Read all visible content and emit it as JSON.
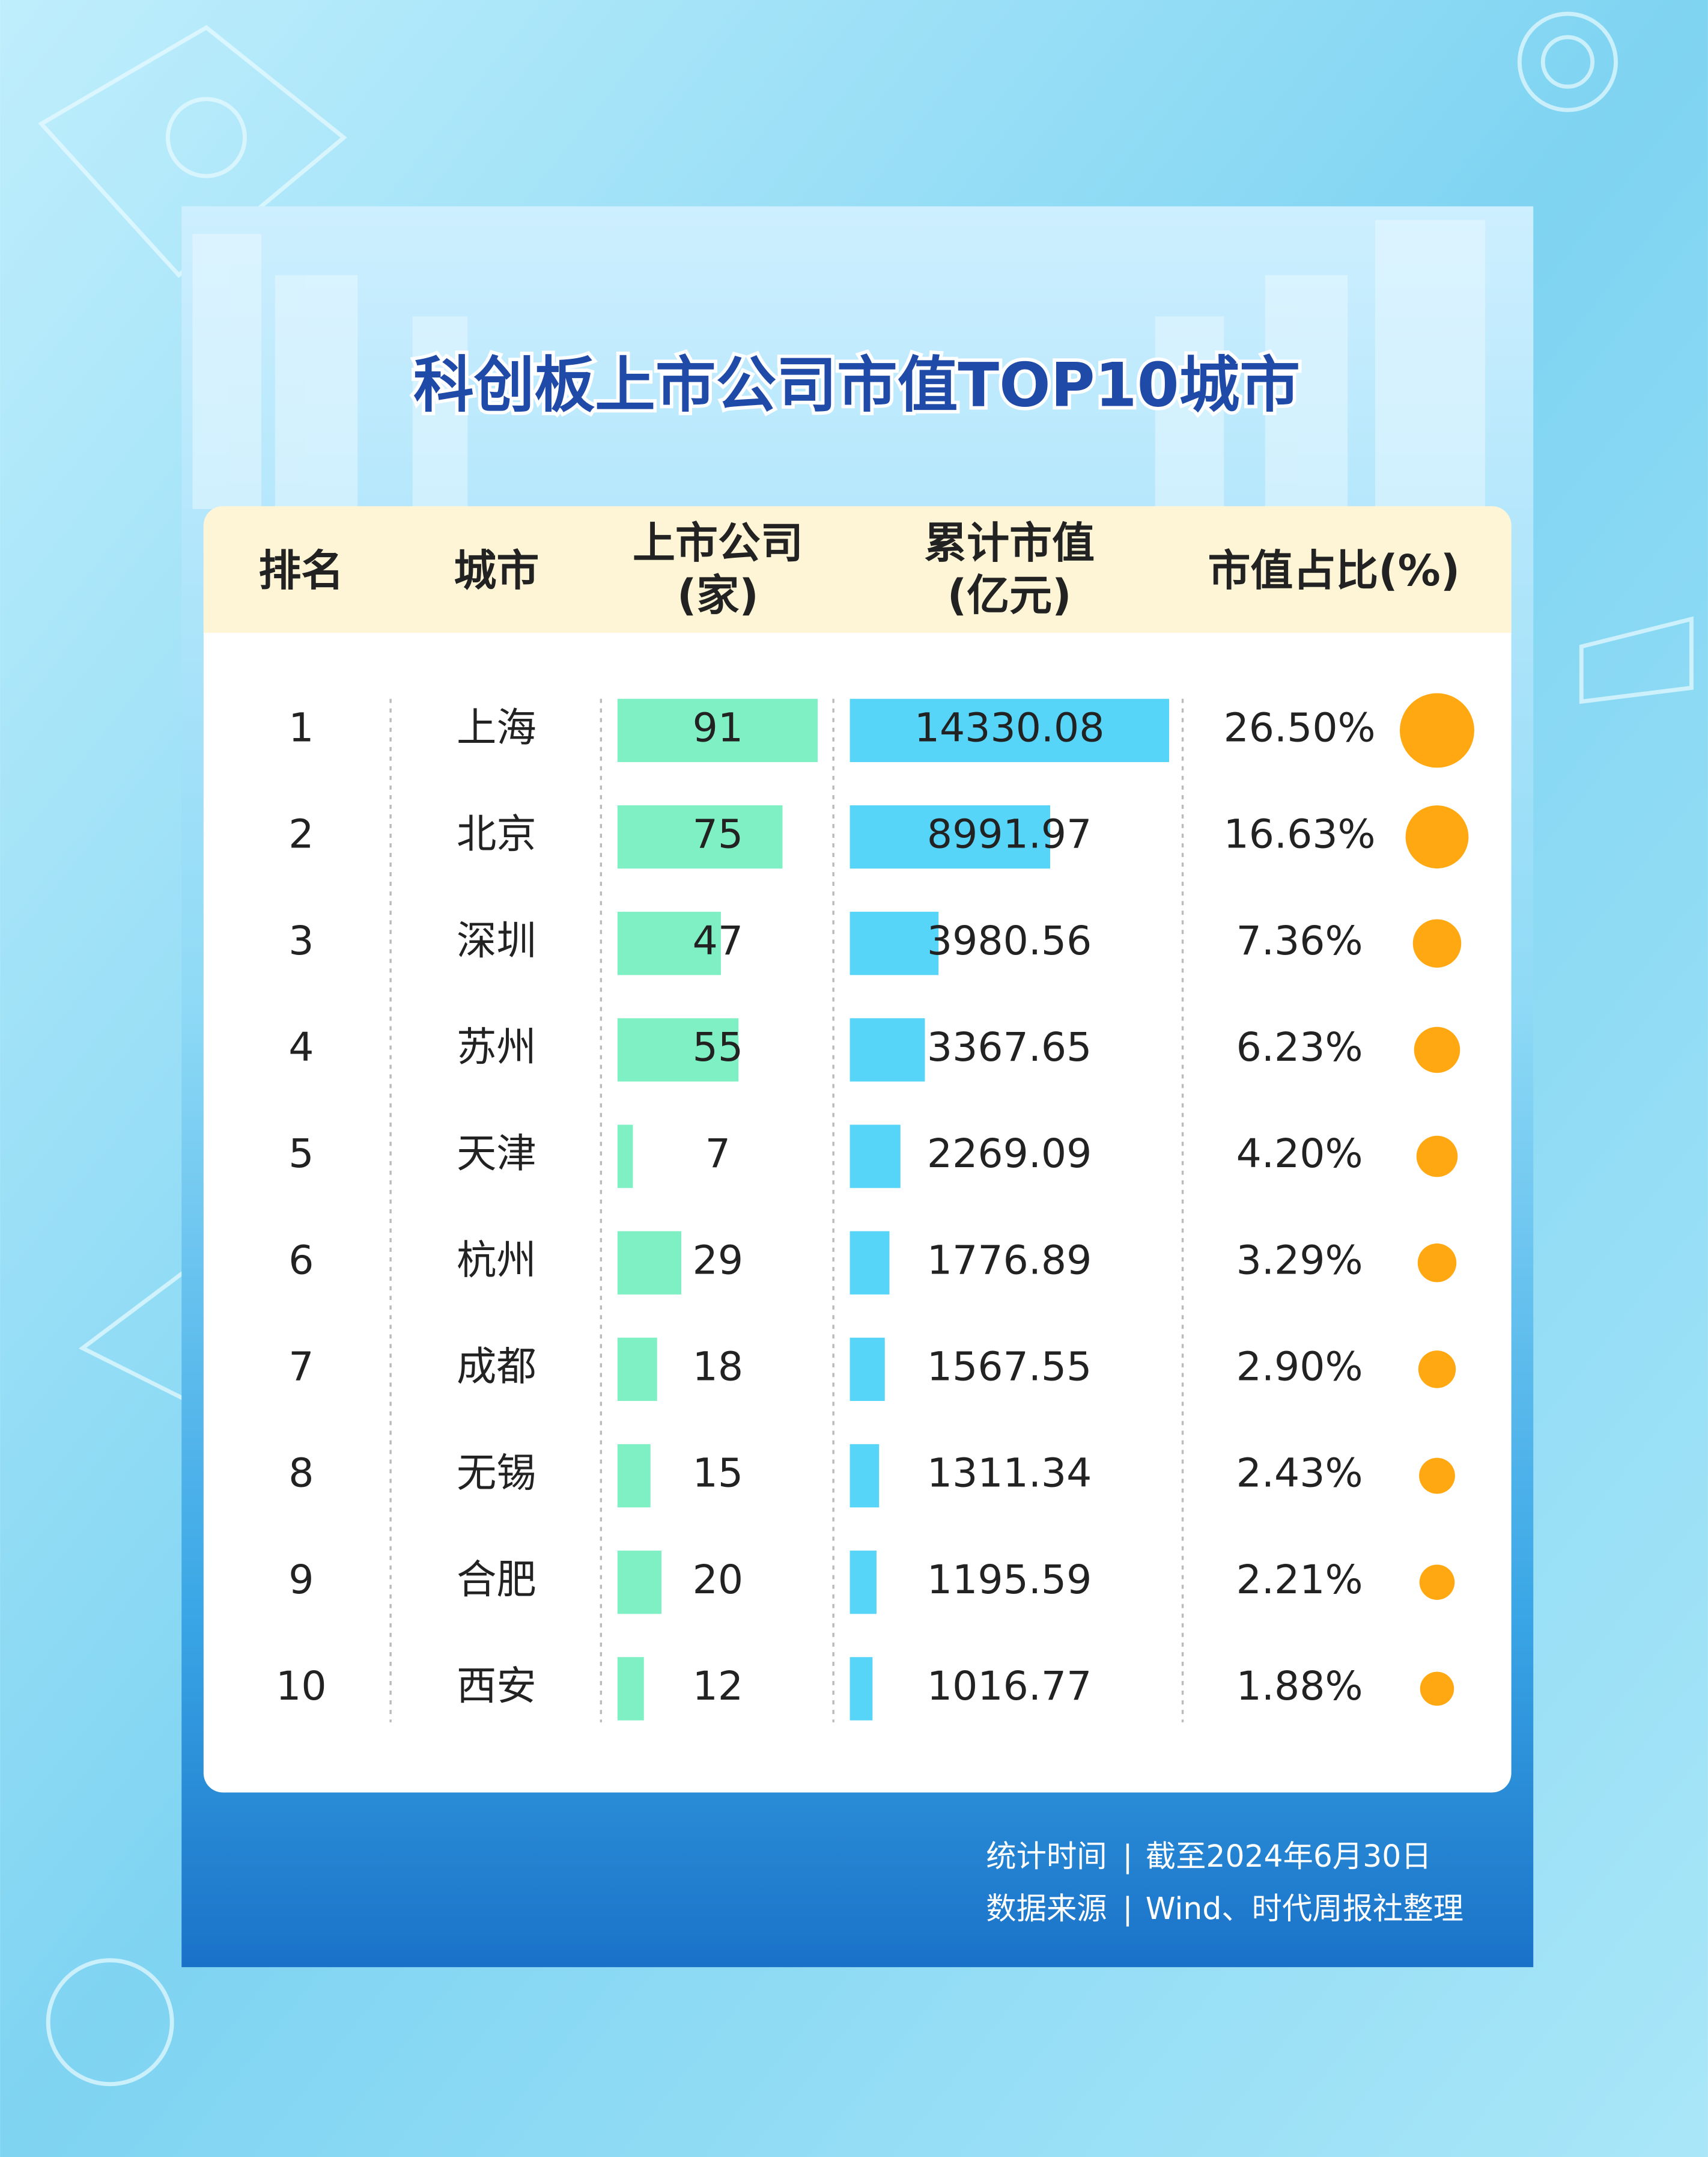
{
  "title": "科创板上市公司市值TOP10城市",
  "table": {
    "headers": [
      [
        "排名"
      ],
      [
        "城市"
      ],
      [
        "上市公司",
        "(家)"
      ],
      [
        "累计市值",
        "(亿元)"
      ],
      [
        "市值占比(%)"
      ]
    ],
    "rows": [
      {
        "rank": 1,
        "city": "上海",
        "companies": 91,
        "market_cap": 14330.08,
        "share": {
          "value": 26.5,
          "label": "26.50%"
        }
      },
      {
        "rank": 2,
        "city": "北京",
        "companies": 75,
        "market_cap": 8991.97,
        "share": {
          "value": 16.63,
          "label": "16.63%"
        }
      },
      {
        "rank": 3,
        "city": "深圳",
        "companies": 47,
        "market_cap": 3980.56,
        "share": {
          "value": 7.36,
          "label": "7.36%"
        }
      },
      {
        "rank": 4,
        "city": "苏州",
        "companies": 55,
        "market_cap": 3367.65,
        "share": {
          "value": 6.23,
          "label": "6.23%"
        }
      },
      {
        "rank": 5,
        "city": "天津",
        "companies": 7,
        "market_cap": 2269.09,
        "share": {
          "value": 4.2,
          "label": "4.20%"
        }
      },
      {
        "rank": 6,
        "city": "杭州",
        "companies": 29,
        "market_cap": 1776.89,
        "share": {
          "value": 3.29,
          "label": "3.29%"
        }
      },
      {
        "rank": 7,
        "city": "成都",
        "companies": 18,
        "market_cap": 1567.55,
        "share": {
          "value": 2.9,
          "label": "2.90%"
        }
      },
      {
        "rank": 8,
        "city": "无锡",
        "companies": 15,
        "market_cap": 1311.34,
        "share": {
          "value": 2.43,
          "label": "2.43%"
        }
      },
      {
        "rank": 9,
        "city": "合肥",
        "companies": 20,
        "market_cap": 1195.59,
        "share": {
          "value": 2.21,
          "label": "2.21%"
        }
      },
      {
        "rank": 10,
        "city": "西安",
        "companies": 12,
        "market_cap": 1016.77,
        "share": {
          "value": 1.88,
          "label": "1.88%"
        }
      }
    ]
  },
  "footer": {
    "time_label": "统计时间",
    "time": "截至2024年6月30日",
    "source_label": "数据来源",
    "source": "Wind、时代周报社整理"
  }
}
